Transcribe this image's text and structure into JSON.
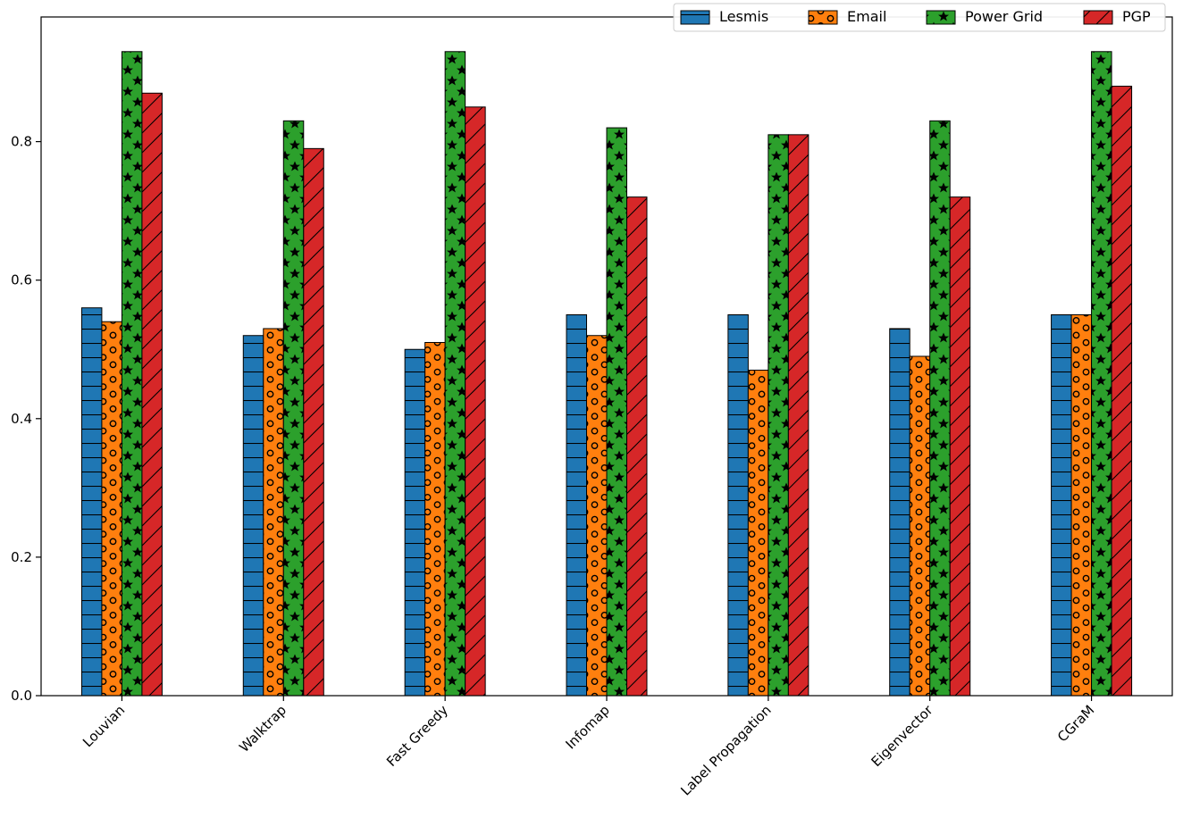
{
  "chart_data": {
    "type": "bar",
    "title": "",
    "xlabel": "",
    "ylabel": "",
    "ylim": [
      0,
      0.98
    ],
    "yticks": [
      0.0,
      0.2,
      0.4,
      0.6,
      0.8
    ],
    "ytick_labels": [
      "0.0",
      "0.2",
      "0.4",
      "0.6",
      "0.8"
    ],
    "grid": false,
    "legend_position": "top-right",
    "categories": [
      "Louvian",
      "Walktrap",
      "Fast Greedy",
      "Infomap",
      "Label Propagation",
      "Eigenvector",
      "CGraM"
    ],
    "series": [
      {
        "name": "Lesmis",
        "color": "#1f77b4",
        "hatch": "horizontal-lines",
        "values": [
          0.56,
          0.52,
          0.5,
          0.55,
          0.55,
          0.53,
          0.55
        ]
      },
      {
        "name": "Email",
        "color": "#ff7f0e",
        "hatch": "circles",
        "values": [
          0.54,
          0.53,
          0.51,
          0.52,
          0.47,
          0.49,
          0.55
        ]
      },
      {
        "name": "Power Grid",
        "color": "#2ca02c",
        "hatch": "stars",
        "values": [
          0.93,
          0.83,
          0.93,
          0.82,
          0.81,
          0.83,
          0.93
        ]
      },
      {
        "name": "PGP",
        "color": "#d62728",
        "hatch": "diagonal-lines",
        "values": [
          0.87,
          0.79,
          0.85,
          0.72,
          0.81,
          0.72,
          0.88
        ]
      }
    ]
  }
}
